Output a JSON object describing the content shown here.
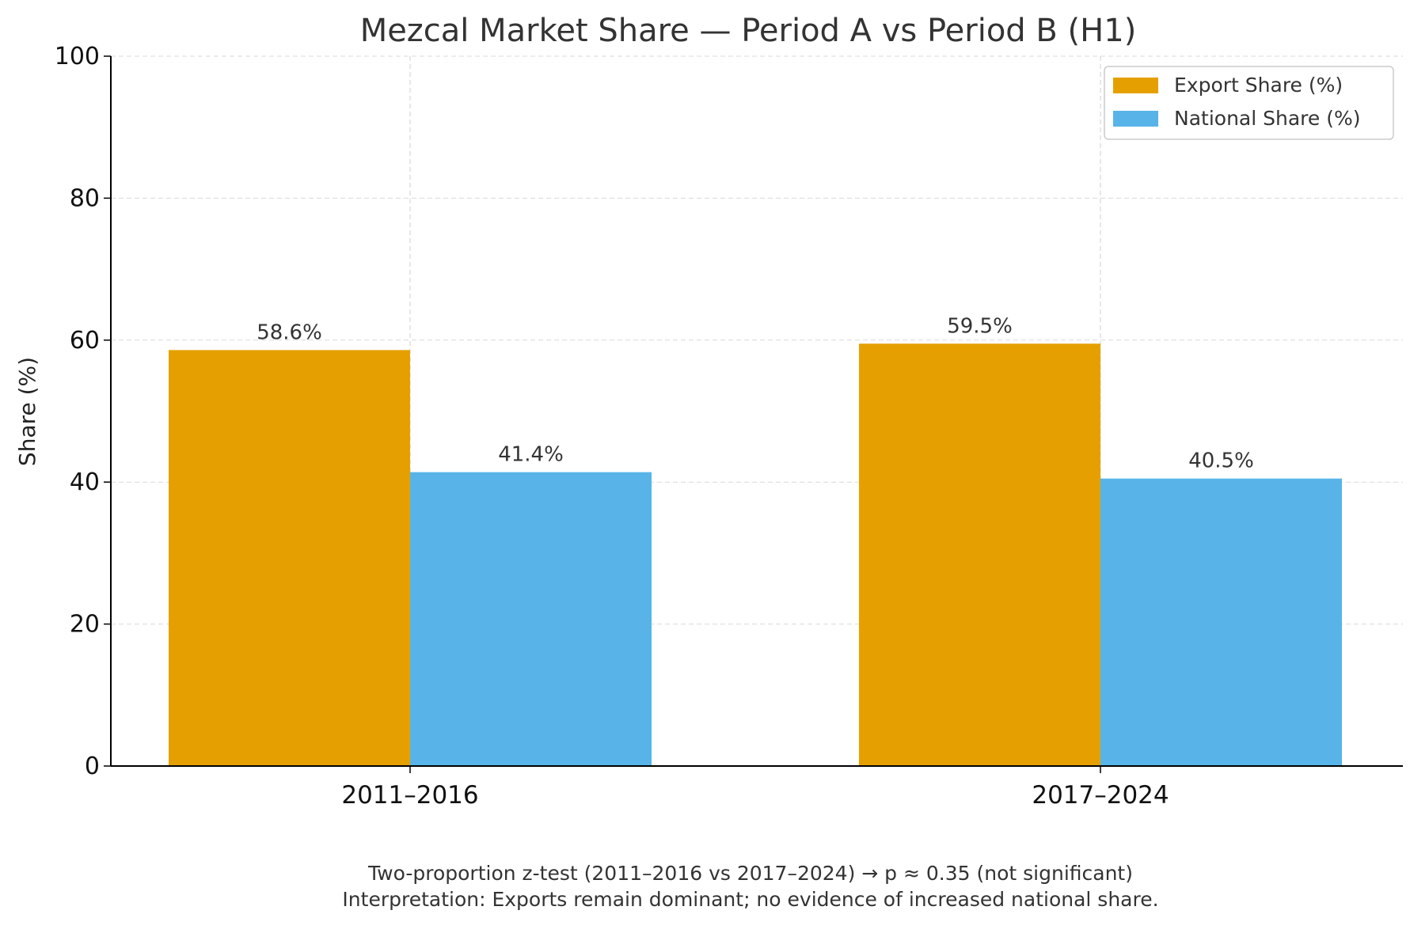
{
  "chart_data": {
    "type": "bar",
    "title": "Mezcal Market Share — Period A vs Period B (H1)",
    "xlabel": "",
    "ylabel": "Share (%)",
    "ylim": [
      0,
      100
    ],
    "yticks": [
      0,
      20,
      40,
      60,
      80,
      100
    ],
    "categories": [
      "2011–2016",
      "2017–2024"
    ],
    "series": [
      {
        "name": "Export Share (%)",
        "color": "#e5a000",
        "values": [
          58.6,
          59.5
        ],
        "labels": [
          "58.6%",
          "59.5%"
        ]
      },
      {
        "name": "National Share (%)",
        "color": "#58b4e8",
        "values": [
          41.4,
          40.5
        ],
        "labels": [
          "41.4%",
          "40.5%"
        ]
      }
    ],
    "grid": true,
    "legend_position": "top-right",
    "annotations": [
      "Two-proportion z-test (2011–2016 vs 2017–2024) → p ≈ 0.35 (not significant)",
      "Interpretation: Exports remain dominant; no evidence of increased national share."
    ]
  }
}
